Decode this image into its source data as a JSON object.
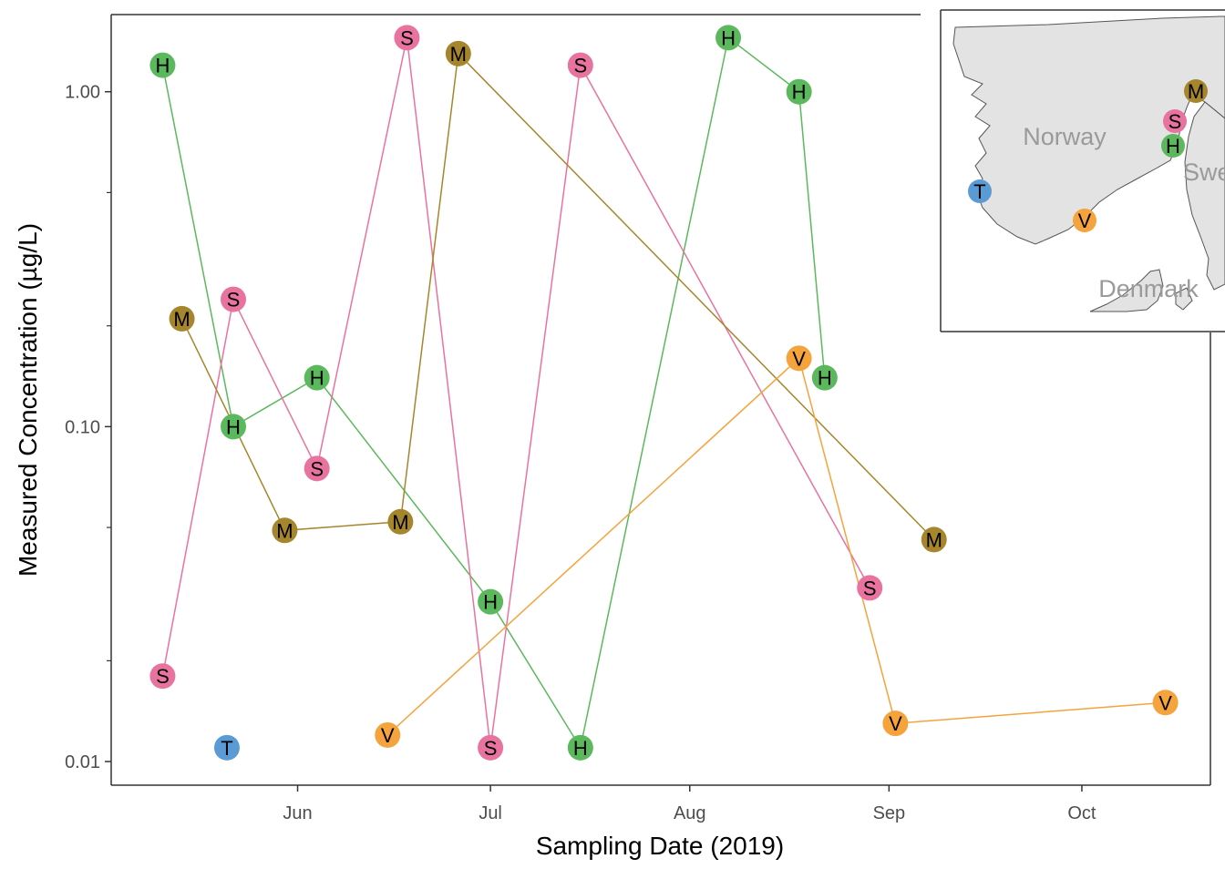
{
  "chart_data": {
    "type": "scatter",
    "xlabel": "Sampling Date (2019)",
    "ylabel": "Measured Concentration (µg/L)",
    "yscale": "log10",
    "ylim": [
      0.0085,
      1.7
    ],
    "xlim": [
      "2019-05-03",
      "2019-10-21"
    ],
    "x_ticks": [
      {
        "date": "2019-06-01",
        "label": "Jun"
      },
      {
        "date": "2019-07-01",
        "label": "Jul"
      },
      {
        "date": "2019-08-01",
        "label": "Aug"
      },
      {
        "date": "2019-09-01",
        "label": "Sep"
      },
      {
        "date": "2019-10-01",
        "label": "Oct"
      }
    ],
    "y_ticks": [
      {
        "value": 0.01,
        "label": "0.01"
      },
      {
        "value": 0.1,
        "label": "0.10"
      },
      {
        "value": 1.0,
        "label": "1.00"
      }
    ],
    "grid": false,
    "legend": "none",
    "series": [
      {
        "letter": "H",
        "color": "#5cb85c",
        "points": [
          {
            "x": "2019-05-11",
            "y": 1.2
          },
          {
            "x": "2019-05-22",
            "y": 0.1
          },
          {
            "x": "2019-06-04",
            "y": 0.14
          },
          {
            "x": "2019-07-01",
            "y": 0.03
          },
          {
            "x": "2019-07-15",
            "y": 0.011
          },
          {
            "x": "2019-08-07",
            "y": 1.45
          },
          {
            "x": "2019-08-18",
            "y": 1.0
          },
          {
            "x": "2019-08-22",
            "y": 0.14
          }
        ]
      },
      {
        "letter": "S",
        "color": "#e8739f",
        "points": [
          {
            "x": "2019-05-11",
            "y": 0.018
          },
          {
            "x": "2019-05-22",
            "y": 0.24
          },
          {
            "x": "2019-06-04",
            "y": 0.075
          },
          {
            "x": "2019-06-18",
            "y": 1.45
          },
          {
            "x": "2019-07-01",
            "y": 0.011
          },
          {
            "x": "2019-07-15",
            "y": 1.2
          },
          {
            "x": "2019-08-29",
            "y": 0.033
          }
        ]
      },
      {
        "letter": "M",
        "color": "#a6862c",
        "points": [
          {
            "x": "2019-05-14",
            "y": 0.21
          },
          {
            "x": "2019-05-30",
            "y": 0.049
          },
          {
            "x": "2019-06-17",
            "y": 0.052
          },
          {
            "x": "2019-06-26",
            "y": 1.3
          },
          {
            "x": "2019-09-08",
            "y": 0.046
          }
        ]
      },
      {
        "letter": "V",
        "color": "#f5a33d",
        "points": [
          {
            "x": "2019-06-15",
            "y": 0.012
          },
          {
            "x": "2019-08-18",
            "y": 0.16
          },
          {
            "x": "2019-09-02",
            "y": 0.013
          },
          {
            "x": "2019-10-14",
            "y": 0.015
          }
        ]
      },
      {
        "letter": "T",
        "color": "#5b9bd5",
        "points": [
          {
            "x": "2019-05-21",
            "y": 0.011
          }
        ]
      }
    ]
  },
  "inset_map": {
    "countries": [
      "Norway",
      "Swe",
      "Denmark"
    ],
    "land_color": "#e3e3e3",
    "sites": [
      {
        "letter": "M",
        "color": "#a6862c"
      },
      {
        "letter": "S",
        "color": "#e8739f"
      },
      {
        "letter": "H",
        "color": "#5cb85c"
      },
      {
        "letter": "T",
        "color": "#5b9bd5"
      },
      {
        "letter": "V",
        "color": "#f5a33d"
      }
    ]
  }
}
